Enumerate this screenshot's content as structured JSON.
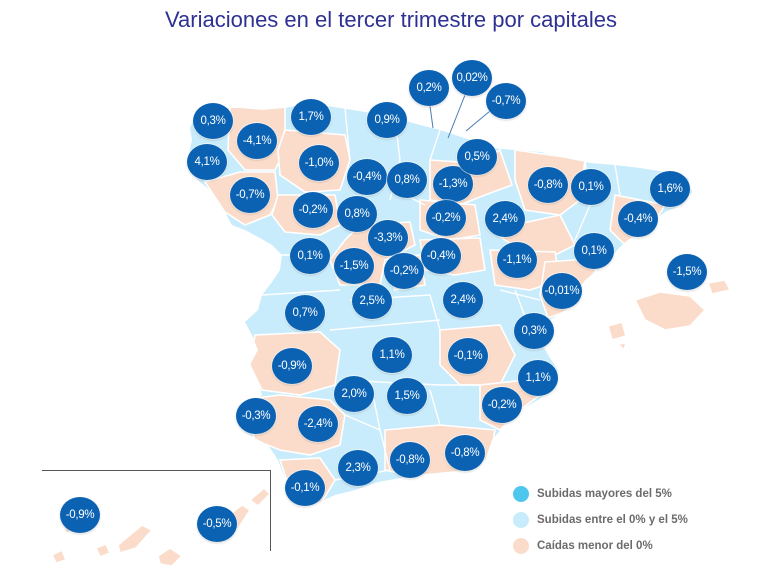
{
  "title": "Variaciones en el tercer trimestre por capitales",
  "colors": {
    "title": "#2e3192",
    "badge": "#0b62b3",
    "rise": "#c8ecfb",
    "fall": "#fbdcca"
  },
  "map": {
    "badges": [
      "0,3%",
      "-4,1%",
      "1,7%",
      "0,9%",
      "0,2%",
      "0,02%",
      "-0,7%",
      "4,1%",
      "-1,0%",
      "-0,4%",
      "0,8%",
      "-1,3%",
      "0,5%",
      "-0,8%",
      "0,1%",
      "1,6%",
      "-0,7%",
      "-0,2%",
      "0,8%",
      "-0,2%",
      "2,4%",
      "-0,4%",
      "-3,3%",
      "0,1%",
      "-1,5%",
      "-0,2%",
      "-0,4%",
      "-1,1%",
      "0,1%",
      "-1,5%",
      "-0,01%",
      "2,5%",
      "2,4%",
      "0,7%",
      "0,3%",
      "1,1%",
      "-0,1%",
      "-0,9%",
      "1,1%",
      "2,0%",
      "1,5%",
      "-0,2%",
      "-0,3%",
      "-2,4%",
      "-0,8%",
      "-0,8%",
      "2,3%",
      "-0,1%",
      "-0,9%",
      "-0,5%"
    ]
  },
  "legend": [
    {
      "label": "Subidas mayores del 5%",
      "color": "#4fc6ee"
    },
    {
      "label": "Subidas entre el 0% y el 5%",
      "color": "#c8ecfb"
    },
    {
      "label": "Caídas menor del 0%",
      "color": "#fbdcca"
    }
  ]
}
